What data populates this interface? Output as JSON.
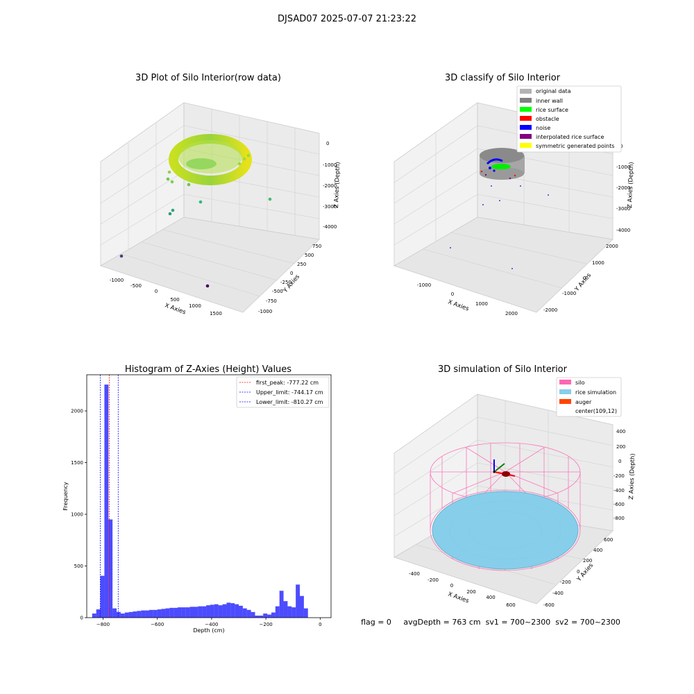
{
  "figure": {
    "suptitle": "DJSAD07 2025-07-07 21:23:22",
    "status_line": "flag = 0     avgDepth = 763 cm  sv1 = 700~2300  sv2 = 700~2300"
  },
  "chart_data": [
    {
      "type": "scatter3d",
      "title": "3D Plot of Silo Interior(row data)",
      "xlabel": "X Axies",
      "ylabel": "Y Axies",
      "zlabel": "Z Axies (Depth)",
      "x_ticks": [
        "-1000",
        "-500",
        "0",
        "500",
        "1000",
        "1500"
      ],
      "y_ticks": [
        "-1000",
        "-750",
        "-500",
        "-250",
        "0",
        "250",
        "500",
        "750"
      ],
      "z_ticks": [
        "0",
        "-1000",
        "-2000",
        "-3000",
        "-4000"
      ],
      "colormap": "viridis (z)",
      "outlier_points": [
        {
          "x": -1050,
          "y": -600,
          "z": -4300
        },
        {
          "x": 1000,
          "y": -850,
          "z": -4700
        },
        {
          "x": -400,
          "y": 150,
          "z": -3100
        },
        {
          "x": 600,
          "y": 700,
          "z": -2800
        }
      ]
    },
    {
      "type": "scatter3d",
      "title": "3D classify of Silo Interior",
      "xlabel": "X Axies",
      "ylabel": "Y Axies",
      "zlabel": "Z Axies (Depth)",
      "x_ticks": [
        "-1000",
        "0",
        "1000",
        "2000"
      ],
      "y_ticks": [
        "-2000",
        "-1000",
        "0",
        "1000",
        "2000"
      ],
      "z_ticks": [
        "0",
        "-1000",
        "-2000",
        "-3000",
        "-4000"
      ],
      "legend": [
        {
          "label": "original data",
          "color": "#b3b3b3"
        },
        {
          "label": "inner wall",
          "color": "#808080"
        },
        {
          "label": "rice surface",
          "color": "#00ff00"
        },
        {
          "label": "obstacle",
          "color": "#ff0000"
        },
        {
          "label": "noise",
          "color": "#0000ff"
        },
        {
          "label": "interpolated rice surface",
          "color": "#800080"
        },
        {
          "label": "symmetric generated points",
          "color": "#ffff00"
        }
      ],
      "legend_placement": "top-right"
    },
    {
      "type": "bar",
      "title": "Histogram of Z-Axies (Height) Values",
      "xlabel": "Depth (cm)",
      "ylabel": "Frequency",
      "xlim": [
        -860,
        40
      ],
      "ylim": [
        0,
        2350
      ],
      "x_ticks": [
        -800,
        -600,
        -400,
        -200,
        0
      ],
      "y_ticks": [
        0,
        500,
        1000,
        1500,
        2000
      ],
      "bar_color": "#0000ff",
      "bin_width": 15,
      "bins": [
        {
          "x": -840,
          "v": 40
        },
        {
          "x": -825,
          "v": 80
        },
        {
          "x": -810,
          "v": 405
        },
        {
          "x": -795,
          "v": 2255
        },
        {
          "x": -780,
          "v": 950
        },
        {
          "x": -765,
          "v": 90
        },
        {
          "x": -750,
          "v": 55
        },
        {
          "x": -735,
          "v": 40
        },
        {
          "x": -720,
          "v": 50
        },
        {
          "x": -705,
          "v": 55
        },
        {
          "x": -690,
          "v": 60
        },
        {
          "x": -675,
          "v": 65
        },
        {
          "x": -660,
          "v": 70
        },
        {
          "x": -645,
          "v": 70
        },
        {
          "x": -630,
          "v": 75
        },
        {
          "x": -615,
          "v": 75
        },
        {
          "x": -600,
          "v": 80
        },
        {
          "x": -585,
          "v": 85
        },
        {
          "x": -570,
          "v": 90
        },
        {
          "x": -555,
          "v": 95
        },
        {
          "x": -540,
          "v": 95
        },
        {
          "x": -525,
          "v": 100
        },
        {
          "x": -510,
          "v": 100
        },
        {
          "x": -495,
          "v": 100
        },
        {
          "x": -480,
          "v": 105
        },
        {
          "x": -465,
          "v": 105
        },
        {
          "x": -450,
          "v": 110
        },
        {
          "x": -435,
          "v": 110
        },
        {
          "x": -420,
          "v": 120
        },
        {
          "x": -405,
          "v": 125
        },
        {
          "x": -390,
          "v": 130
        },
        {
          "x": -375,
          "v": 120
        },
        {
          "x": -360,
          "v": 130
        },
        {
          "x": -345,
          "v": 145
        },
        {
          "x": -330,
          "v": 140
        },
        {
          "x": -315,
          "v": 130
        },
        {
          "x": -300,
          "v": 115
        },
        {
          "x": -285,
          "v": 90
        },
        {
          "x": -270,
          "v": 75
        },
        {
          "x": -255,
          "v": 55
        },
        {
          "x": -240,
          "v": 20
        },
        {
          "x": -225,
          "v": 20
        },
        {
          "x": -210,
          "v": 40
        },
        {
          "x": -195,
          "v": 30
        },
        {
          "x": -180,
          "v": 50
        },
        {
          "x": -165,
          "v": 110
        },
        {
          "x": -150,
          "v": 260
        },
        {
          "x": -135,
          "v": 160
        },
        {
          "x": -120,
          "v": 110
        },
        {
          "x": -105,
          "v": 100
        },
        {
          "x": -90,
          "v": 320
        },
        {
          "x": -75,
          "v": 210
        },
        {
          "x": -60,
          "v": 90
        }
      ],
      "vlines": [
        {
          "label": "first_peak: -777.22 cm",
          "x": -777.22,
          "color": "#ff0000"
        },
        {
          "label": "Upper_limit: -744.17 cm",
          "x": -744.17,
          "color": "#0000ff"
        },
        {
          "label": "Lower_limit: -810.27 cm",
          "x": -810.27,
          "color": "#0000ff"
        }
      ],
      "legend_placement": "top-right"
    },
    {
      "type": "surface3d",
      "title": "3D simulation of Silo Interior",
      "xlabel": "X Axies",
      "ylabel": "Y Axies",
      "zlabel": "Z Axies (Depth)",
      "x_ticks": [
        "-400",
        "-200",
        "0",
        "200",
        "400",
        "600"
      ],
      "y_ticks": [
        "-600",
        "-400",
        "-200",
        "0",
        "200",
        "400",
        "600"
      ],
      "z_ticks": [
        "400",
        "200",
        "0",
        "-200",
        "-400",
        "-600",
        "-800"
      ],
      "legend": [
        {
          "label": "silo",
          "color": "#ff69b4"
        },
        {
          "label": "rice simulation",
          "color": "#87ceeb"
        },
        {
          "label": "auger",
          "color": "#ff4500"
        },
        {
          "label": "center(109,12)",
          "color": ""
        }
      ],
      "legend_placement": "top-right"
    }
  ]
}
